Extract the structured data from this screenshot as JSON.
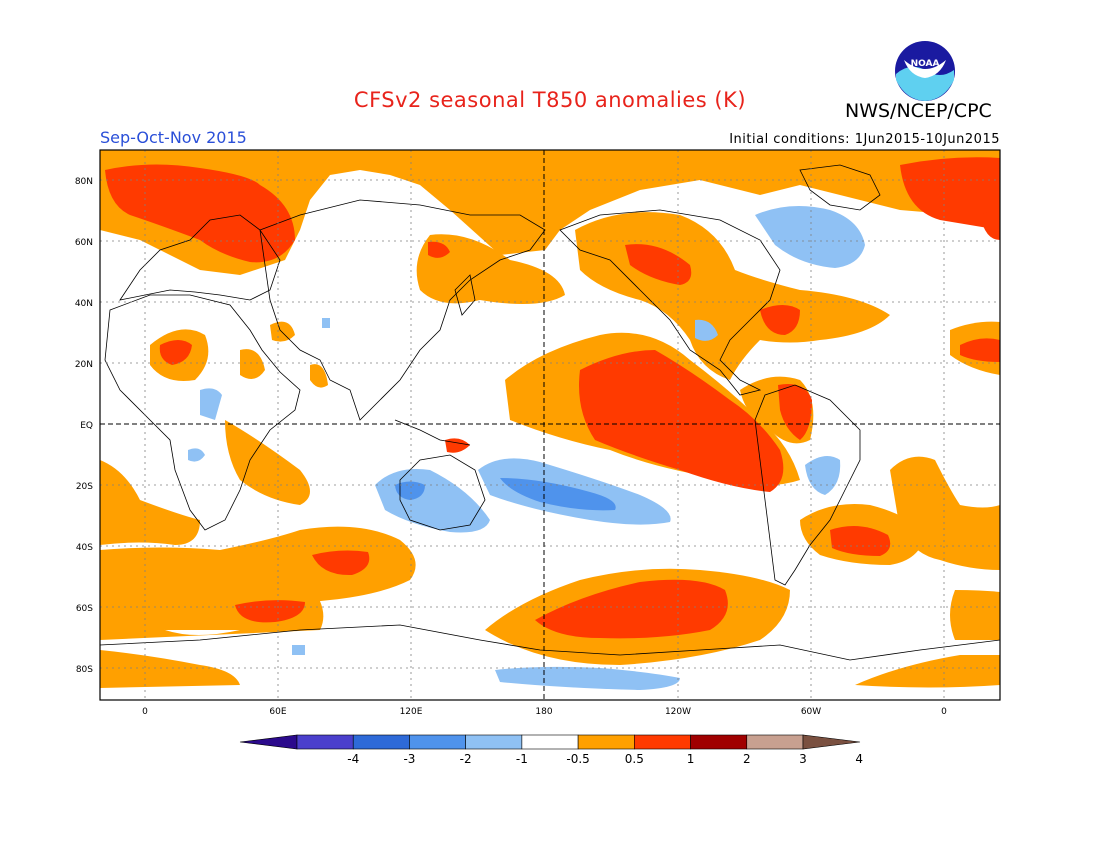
{
  "title": "CFSv2 seasonal T850 anomalies (K)",
  "agency": "NWS/NCEP/CPC",
  "logo_text": "NOAA",
  "period": "Sep-Oct-Nov 2015",
  "initial_conditions": "Initial conditions: 1Jun2015-10Jun2015",
  "lat_labels": [
    "80N",
    "60N",
    "40N",
    "20N",
    "EQ",
    "20S",
    "40S",
    "60S",
    "80S"
  ],
  "lon_labels": [
    "0",
    "60E",
    "120E",
    "180",
    "120W",
    "60W",
    "0"
  ],
  "colorbar": {
    "ticks": [
      "-4",
      "-3",
      "-2",
      "-1",
      "-0.5",
      "0.5",
      "1",
      "2",
      "3",
      "4"
    ],
    "colors": [
      "#2b0a8c",
      "#4b3fcc",
      "#2e6ad8",
      "#4f93ec",
      "#8fc1f4",
      "#ffffff",
      "#ffa000",
      "#ff3a00",
      "#a00000",
      "#c8a090",
      "#7a5040"
    ]
  },
  "legend_colors": {
    "warm_1": "#ffa000",
    "warm_2": "#ff3a00",
    "cool_1": "#8fc1f4",
    "cool_2": "#4f93ec"
  }
}
